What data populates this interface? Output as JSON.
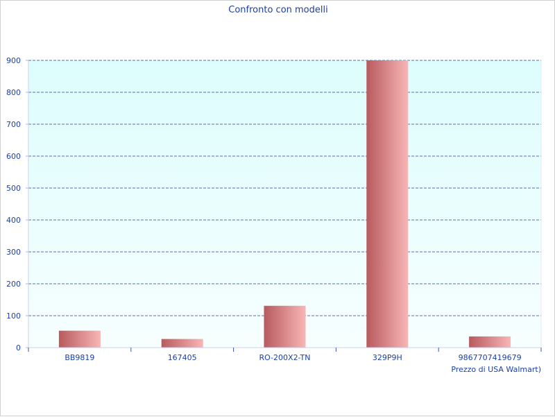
{
  "chart_data": {
    "type": "bar",
    "title": "Confronto con modelli",
    "xlabel": "Prezzo di USA Walmart)",
    "ylabel": "",
    "categories": [
      "BB9819",
      "167405",
      "RO-200X2-TN",
      "329P9H",
      "9867707419679"
    ],
    "values": [
      53,
      27,
      131,
      900,
      35
    ],
    "ylim": [
      0,
      900
    ],
    "yticks": [
      0,
      100,
      200,
      300,
      400,
      500,
      600,
      700,
      800,
      900
    ],
    "grid": true,
    "legend": "none"
  },
  "colors": {
    "bar_dark": "#b85a5e",
    "bar_light": "#f8b6b6",
    "plot_top": "#ddfdfd",
    "plot_bottom": "#f7fefe",
    "grid": "#26408c",
    "text": "#1a3fa8"
  }
}
